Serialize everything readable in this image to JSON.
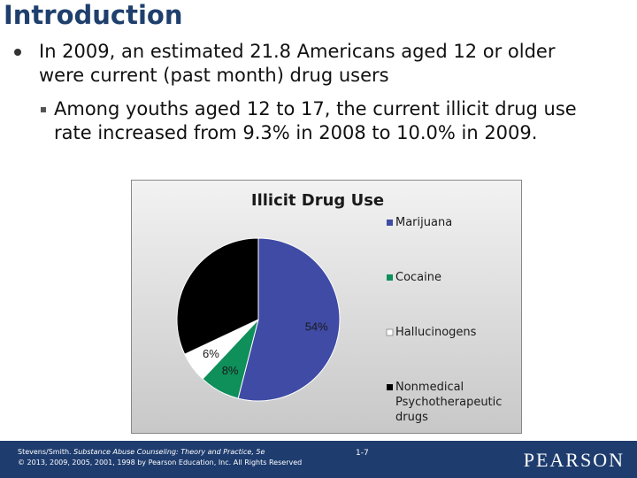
{
  "slide": {
    "title": "Introduction",
    "bullet1": "In 2009, an estimated 21.8 Americans aged 12 or older were current (past month) drug users",
    "bullet2": "Among youths aged 12 to 17, the current illicit drug use rate increased from 9.3% in 2008 to 10.0% in 2009."
  },
  "footer": {
    "citation_line1_prefix": "Stevens/Smith. ",
    "citation_line1_italic": "Substance Abuse Counseling: Theory and Practice, 5e",
    "citation_line2": "© 2013, 2009, 2005, 2001, 1998  by Pearson Education, Inc. All Rights Reserved",
    "page": "1-7",
    "logo": "PEARSON"
  },
  "chart_data": {
    "type": "pie",
    "title": "Illicit Drug Use",
    "legend_position": "right",
    "slices": [
      {
        "label": "Marijuana",
        "value": 54,
        "display": "54%",
        "color": "#3f4ba5"
      },
      {
        "label": "Cocaine",
        "value": 8,
        "display": "8%",
        "color": "#0f8f5a"
      },
      {
        "label": "Hallucinogens",
        "value": 6,
        "display": "6%",
        "color": "#ffffff"
      },
      {
        "label": "Nonmedical Psychotherapeutic drugs",
        "value": 32,
        "display": "",
        "color": "#000000"
      }
    ],
    "legend_lines": [
      [
        "Marijuana"
      ],
      [
        "Cocaine"
      ],
      [
        "Hallucinogens"
      ],
      [
        "Nonmedical",
        "Psychotherapeutic",
        "drugs"
      ]
    ]
  }
}
